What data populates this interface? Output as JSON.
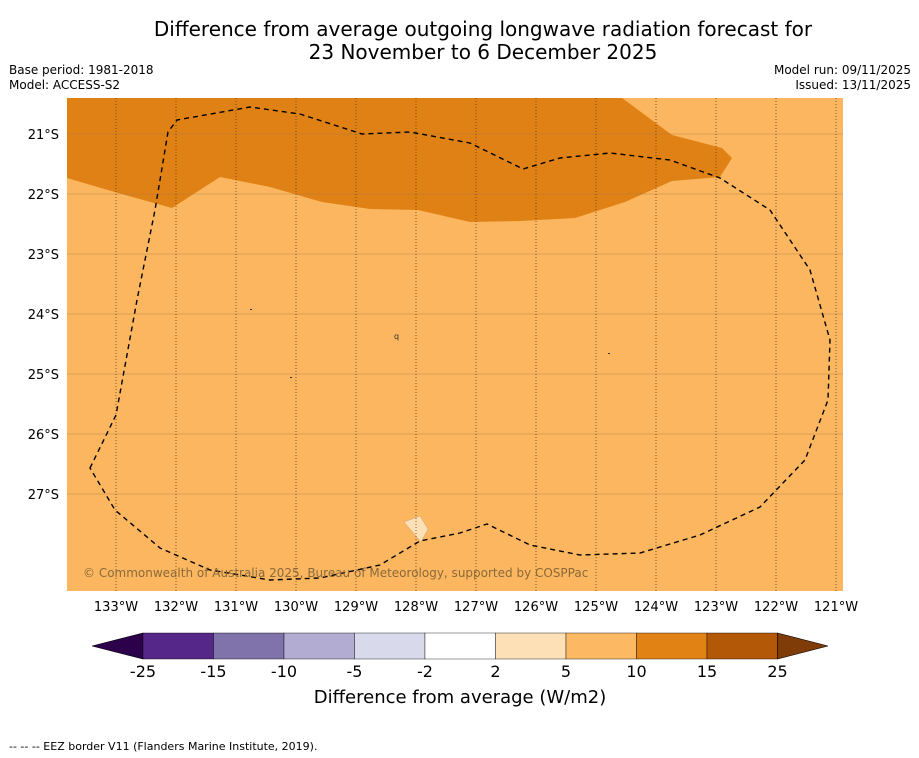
{
  "title": {
    "line1": "Difference from average outgoing longwave radiation forecast for",
    "line2": "23 November to 6 December 2025"
  },
  "meta": {
    "base_period": "Base period: 1981-2018",
    "model": "Model: ACCESS-S2",
    "model_run": "Model run: 09/11/2025",
    "issued": "Issued: 13/11/2025"
  },
  "map": {
    "lat_labels": [
      "21°S",
      "22°S",
      "23°S",
      "24°S",
      "25°S",
      "26°S",
      "27°S"
    ],
    "lon_labels": [
      "133°W",
      "132°W",
      "131°W",
      "130°W",
      "129°W",
      "128°W",
      "127°W",
      "126°W",
      "125°W",
      "124°W",
      "123°W",
      "122°W",
      "121°W"
    ],
    "copyright": "© Commonwealth of Australia 2025, Bureau of Meteorology, supported by COSPPac",
    "colors": {
      "band_5_10": "#fbb65f",
      "band_10_15": "#e08115",
      "band_2_5": "#fde0b6"
    }
  },
  "colorbar": {
    "ticks": [
      "-25",
      "-15",
      "-10",
      "-5",
      "-2",
      "2",
      "5",
      "10",
      "15",
      "25"
    ],
    "colors": [
      "#2d004b",
      "#542788",
      "#8073ac",
      "#b2abd2",
      "#d8daeb",
      "#ffffff",
      "#fee0b6",
      "#fdb863",
      "#e08214",
      "#b35806",
      "#7f3b08"
    ],
    "label": "Difference from average (W/m2)"
  },
  "footer": "--  --  -- EEZ border V11 (Flanders Marine Institute, 2019)."
}
